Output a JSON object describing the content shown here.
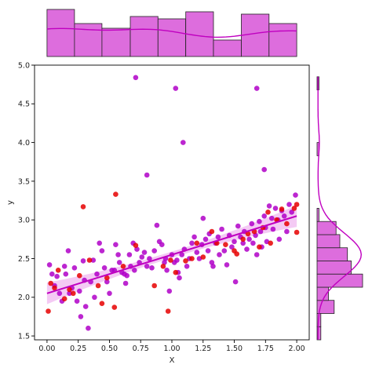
{
  "chart_data": {
    "type": "scatter",
    "title": "",
    "xlabel": "X",
    "ylabel": "y",
    "xlim": [
      -0.1,
      2.1
    ],
    "ylim": [
      1.45,
      5.0
    ],
    "x_ticks": [
      0.0,
      0.25,
      0.5,
      0.75,
      1.0,
      1.25,
      1.5,
      1.75,
      2.0
    ],
    "x_tick_labels": [
      "0.00",
      "0.25",
      "0.50",
      "0.75",
      "1.00",
      "1.25",
      "1.50",
      "1.75",
      "2.00"
    ],
    "y_ticks": [
      1.5,
      2.0,
      2.5,
      3.0,
      3.5,
      4.0,
      4.5,
      5.0
    ],
    "y_tick_labels": [
      "1.5",
      "2.0",
      "2.5",
      "3.0",
      "3.5",
      "4.0",
      "4.5",
      "5.0"
    ],
    "grid": false,
    "colors": {
      "purple_points": "#b000c8",
      "red_points": "#e60000",
      "regression_line": "#c000c0",
      "confidence_band": "#f0b4f0",
      "histogram_fill": "#dd6ddd",
      "kde_line": "#c000c0"
    },
    "regression": {
      "intercept": 2.05,
      "slope": 0.5
    },
    "series": [
      {
        "color": "purple",
        "points": [
          [
            0.71,
            4.84
          ],
          [
            1.03,
            4.7
          ],
          [
            1.68,
            4.7
          ],
          [
            1.09,
            4.0
          ],
          [
            0.8,
            3.58
          ],
          [
            1.74,
            3.65
          ],
          [
            0.02,
            2.42
          ],
          [
            0.04,
            2.3
          ],
          [
            0.06,
            2.15
          ],
          [
            0.08,
            2.27
          ],
          [
            0.1,
            2.05
          ],
          [
            0.12,
            1.95
          ],
          [
            0.14,
            2.4
          ],
          [
            0.15,
            2.3
          ],
          [
            0.17,
            2.6
          ],
          [
            0.18,
            2.05
          ],
          [
            0.2,
            2.12
          ],
          [
            0.22,
            2.38
          ],
          [
            0.24,
            1.95
          ],
          [
            0.26,
            2.08
          ],
          [
            0.27,
            1.75
          ],
          [
            0.29,
            2.47
          ],
          [
            0.3,
            2.22
          ],
          [
            0.31,
            1.88
          ],
          [
            0.33,
            1.6
          ],
          [
            0.35,
            2.2
          ],
          [
            0.37,
            2.48
          ],
          [
            0.38,
            2.0
          ],
          [
            0.4,
            2.3
          ],
          [
            0.42,
            2.7
          ],
          [
            0.44,
            2.6
          ],
          [
            0.46,
            2.38
          ],
          [
            0.48,
            2.2
          ],
          [
            0.5,
            2.05
          ],
          [
            0.52,
            2.35
          ],
          [
            0.54,
            2.35
          ],
          [
            0.55,
            2.68
          ],
          [
            0.57,
            2.55
          ],
          [
            0.58,
            2.45
          ],
          [
            0.6,
            2.32
          ],
          [
            0.62,
            2.3
          ],
          [
            0.63,
            2.18
          ],
          [
            0.64,
            2.28
          ],
          [
            0.66,
            2.55
          ],
          [
            0.67,
            2.4
          ],
          [
            0.69,
            2.7
          ],
          [
            0.7,
            2.35
          ],
          [
            0.72,
            2.62
          ],
          [
            0.74,
            2.45
          ],
          [
            0.76,
            2.52
          ],
          [
            0.78,
            2.58
          ],
          [
            0.8,
            2.4
          ],
          [
            0.82,
            2.5
          ],
          [
            0.84,
            2.38
          ],
          [
            0.86,
            2.6
          ],
          [
            0.88,
            2.93
          ],
          [
            0.9,
            2.72
          ],
          [
            0.92,
            2.68
          ],
          [
            0.94,
            2.45
          ],
          [
            0.95,
            2.5
          ],
          [
            0.96,
            2.35
          ],
          [
            0.98,
            2.08
          ],
          [
            1.0,
            2.55
          ],
          [
            1.02,
            2.45
          ],
          [
            1.04,
            2.48
          ],
          [
            1.05,
            2.32
          ],
          [
            1.06,
            2.25
          ],
          [
            1.08,
            2.55
          ],
          [
            1.1,
            2.62
          ],
          [
            1.12,
            2.4
          ],
          [
            1.14,
            2.5
          ],
          [
            1.16,
            2.7
          ],
          [
            1.18,
            2.78
          ],
          [
            1.2,
            2.58
          ],
          [
            1.22,
            2.5
          ],
          [
            1.24,
            2.68
          ],
          [
            1.25,
            3.02
          ],
          [
            1.27,
            2.75
          ],
          [
            1.29,
            2.6
          ],
          [
            1.3,
            2.82
          ],
          [
            1.32,
            2.45
          ],
          [
            1.33,
            2.4
          ],
          [
            1.35,
            2.7
          ],
          [
            1.37,
            2.78
          ],
          [
            1.38,
            2.55
          ],
          [
            1.4,
            2.88
          ],
          [
            1.42,
            2.6
          ],
          [
            1.44,
            2.42
          ],
          [
            1.46,
            2.8
          ],
          [
            1.48,
            2.65
          ],
          [
            1.5,
            2.72
          ],
          [
            1.51,
            2.2
          ],
          [
            1.53,
            2.92
          ],
          [
            1.55,
            2.78
          ],
          [
            1.57,
            2.7
          ],
          [
            1.58,
            2.85
          ],
          [
            1.6,
            2.62
          ],
          [
            1.62,
            2.75
          ],
          [
            1.64,
            2.95
          ],
          [
            1.65,
            2.7
          ],
          [
            1.67,
            2.8
          ],
          [
            1.68,
            2.55
          ],
          [
            1.7,
            2.98
          ],
          [
            1.71,
            2.85
          ],
          [
            1.72,
            2.65
          ],
          [
            1.74,
            3.05
          ],
          [
            1.75,
            2.9
          ],
          [
            1.76,
            2.72
          ],
          [
            1.78,
            3.18
          ],
          [
            1.8,
            3.02
          ],
          [
            1.81,
            2.88
          ],
          [
            1.83,
            3.15
          ],
          [
            1.85,
            3.0
          ],
          [
            1.86,
            2.75
          ],
          [
            1.88,
            3.12
          ],
          [
            1.9,
            3.05
          ],
          [
            1.92,
            2.85
          ],
          [
            1.94,
            3.2
          ],
          [
            1.96,
            3.1
          ],
          [
            1.99,
            3.32
          ]
        ]
      },
      {
        "color": "red",
        "points": [
          [
            0.01,
            1.82
          ],
          [
            0.03,
            2.18
          ],
          [
            0.06,
            2.12
          ],
          [
            0.09,
            2.35
          ],
          [
            0.14,
            1.98
          ],
          [
            0.18,
            2.1
          ],
          [
            0.21,
            2.05
          ],
          [
            0.26,
            2.28
          ],
          [
            0.29,
            3.17
          ],
          [
            0.34,
            2.48
          ],
          [
            0.41,
            2.15
          ],
          [
            0.44,
            1.92
          ],
          [
            0.48,
            2.25
          ],
          [
            0.54,
            1.87
          ],
          [
            0.55,
            3.33
          ],
          [
            0.61,
            2.4
          ],
          [
            0.71,
            2.67
          ],
          [
            0.86,
            2.15
          ],
          [
            0.93,
            2.4
          ],
          [
            0.97,
            1.82
          ],
          [
            0.99,
            2.48
          ],
          [
            1.03,
            2.32
          ],
          [
            1.11,
            2.47
          ],
          [
            1.16,
            2.5
          ],
          [
            1.2,
            2.7
          ],
          [
            1.25,
            2.52
          ],
          [
            1.32,
            2.85
          ],
          [
            1.36,
            2.7
          ],
          [
            1.43,
            2.68
          ],
          [
            1.5,
            2.6
          ],
          [
            1.52,
            2.56
          ],
          [
            1.57,
            2.75
          ],
          [
            1.61,
            2.82
          ],
          [
            1.66,
            2.85
          ],
          [
            1.7,
            2.65
          ],
          [
            1.73,
            2.9
          ],
          [
            1.77,
            3.1
          ],
          [
            1.79,
            2.7
          ],
          [
            1.84,
            3.0
          ],
          [
            1.88,
            3.14
          ],
          [
            1.92,
            2.95
          ],
          [
            1.98,
            3.15
          ],
          [
            2.0,
            2.84
          ],
          [
            2.0,
            3.2
          ]
        ]
      }
    ],
    "marginal_x": {
      "type": "histogram",
      "bin_edges": [
        0.0,
        0.22,
        0.44,
        0.667,
        0.889,
        1.111,
        1.333,
        1.556,
        1.778,
        2.0
      ],
      "counts": [
        20,
        14,
        12,
        17,
        16,
        19,
        7,
        18,
        14
      ]
    },
    "marginal_y": {
      "type": "histogram",
      "bin_edges": [
        1.45,
        1.62,
        1.79,
        1.96,
        2.13,
        2.3,
        2.47,
        2.64,
        2.81,
        2.98,
        3.15,
        3.32,
        3.49,
        3.66,
        3.83,
        4.0,
        4.17,
        4.34,
        4.51,
        4.68,
        4.85
      ],
      "counts": [
        2,
        2,
        9,
        6,
        24,
        18,
        16,
        12,
        10,
        1,
        0,
        0,
        0,
        0,
        1,
        0,
        0,
        0,
        0,
        1
      ]
    }
  }
}
